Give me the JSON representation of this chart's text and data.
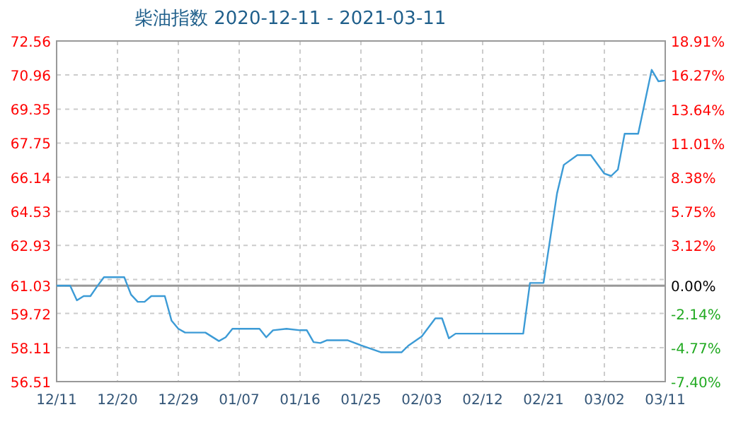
{
  "chart_data": {
    "type": "line",
    "title": "柴油指数 2020-12-11 - 2021-03-11",
    "x": [
      "2020-12-11",
      "2020-12-13",
      "2020-12-14",
      "2020-12-15",
      "2020-12-16",
      "2020-12-17",
      "2020-12-18",
      "2020-12-21",
      "2020-12-22",
      "2020-12-23",
      "2020-12-24",
      "2020-12-25",
      "2020-12-27",
      "2020-12-28",
      "2020-12-29",
      "2020-12-30",
      "2021-01-02",
      "2021-01-04",
      "2021-01-05",
      "2021-01-06",
      "2021-01-10",
      "2021-01-11",
      "2021-01-12",
      "2021-01-14",
      "2021-01-16",
      "2021-01-17",
      "2021-01-18",
      "2021-01-19",
      "2021-01-20",
      "2021-01-23",
      "2021-01-25",
      "2021-01-28",
      "2021-01-31",
      "2021-02-01",
      "2021-02-03",
      "2021-02-05",
      "2021-02-06",
      "2021-02-07",
      "2021-02-08",
      "2021-02-18",
      "2021-02-19",
      "2021-02-21",
      "2021-02-23",
      "2021-02-24",
      "2021-02-26",
      "2021-02-28",
      "2021-03-02",
      "2021-03-03",
      "2021-03-04",
      "2021-03-05",
      "2021-03-07",
      "2021-03-09",
      "2021-03-10",
      "2021-03-11"
    ],
    "series": [
      {
        "color": "#3c9bd6",
        "values": [
          61.03,
          61.03,
          60.34,
          60.54,
          60.54,
          61.0,
          61.43,
          61.43,
          60.61,
          60.27,
          60.27,
          60.54,
          60.54,
          59.38,
          59.0,
          58.82,
          58.82,
          58.42,
          58.6,
          59.0,
          59.0,
          58.6,
          58.93,
          59.0,
          58.93,
          58.93,
          58.37,
          58.33,
          58.46,
          58.46,
          58.22,
          57.89,
          57.89,
          58.2,
          58.64,
          59.49,
          59.49,
          58.55,
          58.77,
          58.77,
          61.16,
          61.16,
          65.38,
          66.72,
          67.18,
          67.18,
          66.31,
          66.2,
          66.5,
          68.19,
          68.19,
          71.2,
          70.66,
          70.7
        ]
      }
    ],
    "xlim": [
      "2020-12-11",
      "2021-03-11"
    ],
    "xticks": [
      {
        "value": "2020-12-11",
        "label": "12/11"
      },
      {
        "value": "2020-12-20",
        "label": "12/20"
      },
      {
        "value": "2020-12-29",
        "label": "12/29"
      },
      {
        "value": "2021-01-07",
        "label": "01/07"
      },
      {
        "value": "2021-01-16",
        "label": "01/16"
      },
      {
        "value": "2021-01-25",
        "label": "01/25"
      },
      {
        "value": "2021-02-03",
        "label": "02/03"
      },
      {
        "value": "2021-02-12",
        "label": "02/12"
      },
      {
        "value": "2021-02-21",
        "label": "02/21"
      },
      {
        "value": "2021-03-02",
        "label": "03/02"
      },
      {
        "value": "2021-03-11",
        "label": "03/11"
      }
    ],
    "ylim": [
      56.51,
      72.56
    ],
    "yticks": [
      56.51,
      58.11,
      59.72,
      61.03,
      {
        "value": 61.32,
        "label": null
      },
      62.93,
      64.53,
      66.14,
      67.75,
      69.35,
      70.96,
      72.56
    ],
    "y2lim": [
      -7.4,
      18.91
    ],
    "y2ticks": [
      {
        "value": -7.4,
        "label": "-7.40%"
      },
      {
        "value": -4.77,
        "label": "-4.77%"
      },
      {
        "value": -2.14,
        "label": "-2.14%"
      },
      {
        "value": 0,
        "label": "0.00%"
      },
      {
        "value": 3.12,
        "label": "3.12%"
      },
      {
        "value": 5.75,
        "label": "5.75%"
      },
      {
        "value": 8.38,
        "label": "8.38%"
      },
      {
        "value": 11.01,
        "label": "11.01%"
      },
      {
        "value": 13.64,
        "label": "13.64%"
      },
      {
        "value": 16.27,
        "label": "16.27%"
      },
      {
        "value": 18.91,
        "label": "18.91%"
      }
    ],
    "ref_lines": [
      {
        "axis": "y",
        "value": 61.03,
        "color": "#999999",
        "line_style": "solid"
      }
    ],
    "grid": true
  }
}
